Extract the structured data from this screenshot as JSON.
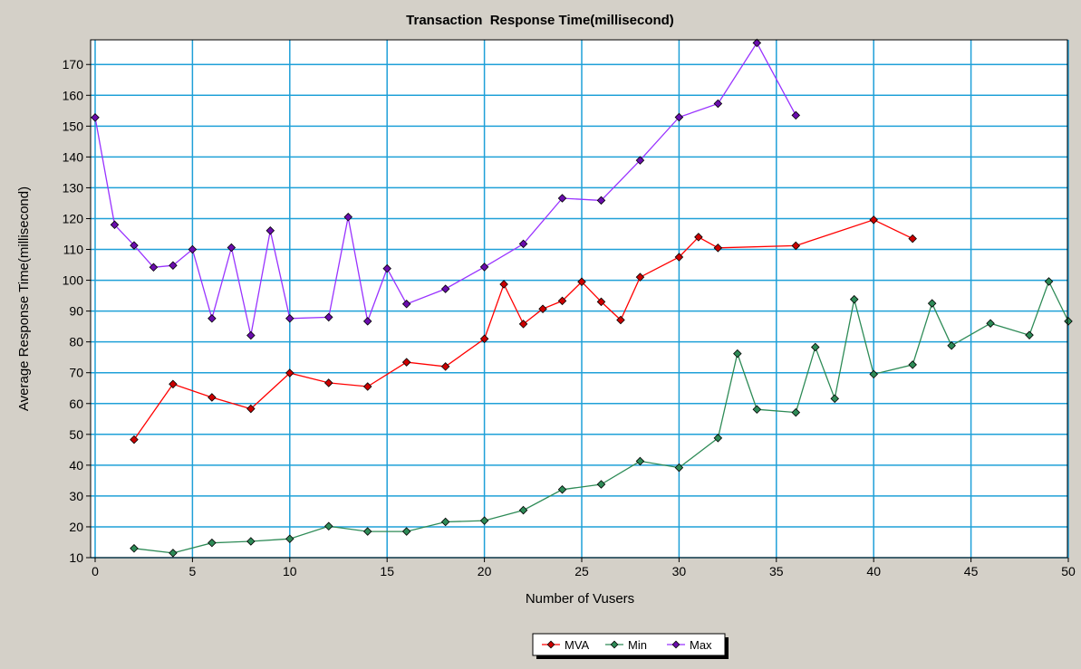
{
  "chart_data": {
    "type": "line",
    "title": "Transaction  Response Time(millisecond)",
    "xlabel": "Number of Vusers",
    "ylabel": "Average Response Time(millisecond)",
    "xlim": [
      0,
      50
    ],
    "ylim": [
      10,
      178
    ],
    "x_ticks": [
      0,
      5,
      10,
      15,
      20,
      25,
      30,
      35,
      40,
      45,
      50
    ],
    "y_ticks": [
      10,
      20,
      30,
      40,
      50,
      60,
      70,
      80,
      90,
      100,
      110,
      120,
      130,
      140,
      150,
      160,
      170
    ],
    "grid": true,
    "legend_position": "bottom-center",
    "series": [
      {
        "name": "MVA",
        "color": "#ff0000",
        "marker_color": "#cc0000",
        "points": [
          [
            2,
            48.3
          ],
          [
            4,
            66.3
          ],
          [
            6,
            62
          ],
          [
            8,
            58.3
          ],
          [
            10,
            69.9
          ],
          [
            12,
            66.7
          ],
          [
            14,
            65.5
          ],
          [
            16,
            73.4
          ],
          [
            18,
            72
          ],
          [
            20,
            81
          ],
          [
            21,
            98.7
          ],
          [
            22,
            85.8
          ],
          [
            23,
            90.7
          ],
          [
            24,
            93.3
          ],
          [
            25,
            99.5
          ],
          [
            26,
            93
          ],
          [
            27,
            87.1
          ],
          [
            28,
            101
          ],
          [
            30,
            107.5
          ],
          [
            31,
            114
          ],
          [
            32,
            110.5
          ],
          [
            36,
            111.2
          ],
          [
            40,
            119.6
          ],
          [
            42,
            113.5
          ]
        ]
      },
      {
        "name": "Min",
        "color": "#2e8b57",
        "marker_color": "#2e8b57",
        "points": [
          [
            2,
            13
          ],
          [
            4,
            11.5
          ],
          [
            6,
            14.8
          ],
          [
            8,
            15.3
          ],
          [
            10,
            16.1
          ],
          [
            12,
            20.2
          ],
          [
            14,
            18.5
          ],
          [
            16,
            18.5
          ],
          [
            18,
            21.6
          ],
          [
            20,
            22
          ],
          [
            22,
            25.4
          ],
          [
            24,
            32.1
          ],
          [
            26,
            33.8
          ],
          [
            28,
            41.3
          ],
          [
            30,
            39.2
          ],
          [
            32,
            48.8
          ],
          [
            33,
            76.2
          ],
          [
            34,
            58.1
          ],
          [
            36,
            57.1
          ],
          [
            37,
            78.3
          ],
          [
            38,
            61.6
          ],
          [
            39,
            93.8
          ],
          [
            40,
            69.5
          ],
          [
            42,
            72.6
          ],
          [
            43,
            92.5
          ],
          [
            44,
            78.8
          ],
          [
            46,
            86
          ],
          [
            48,
            82.2
          ],
          [
            49,
            99.6
          ],
          [
            50,
            86.7
          ]
        ]
      },
      {
        "name": "Max",
        "color": "#9933ff",
        "marker_color": "#6a0dad",
        "points": [
          [
            0,
            152.8
          ],
          [
            1,
            118
          ],
          [
            2,
            111.3
          ],
          [
            3,
            104.2
          ],
          [
            4,
            104.8
          ],
          [
            5,
            110
          ],
          [
            6,
            87.6
          ],
          [
            7,
            110.6
          ],
          [
            8,
            82.1
          ],
          [
            9,
            116.1
          ],
          [
            10,
            87.6
          ],
          [
            12,
            88
          ],
          [
            13,
            120.5
          ],
          [
            14,
            86.7
          ],
          [
            15,
            103.8
          ],
          [
            16,
            92.3
          ],
          [
            18,
            97.2
          ],
          [
            20,
            104.3
          ],
          [
            22,
            111.8
          ],
          [
            24,
            126.6
          ],
          [
            26,
            125.9
          ],
          [
            28,
            138.9
          ],
          [
            30,
            152.9
          ],
          [
            32,
            157.3
          ],
          [
            34,
            177
          ],
          [
            36,
            153.5
          ]
        ]
      }
    ]
  }
}
